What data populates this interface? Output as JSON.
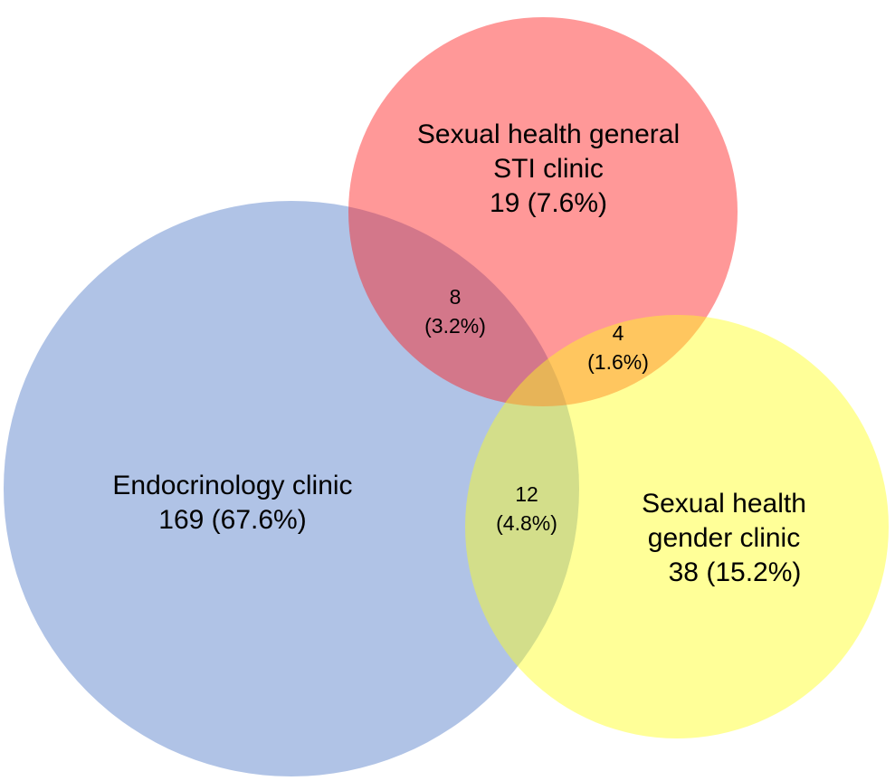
{
  "sets": [
    {
      "name": [
        "Endocrinology clinic"
      ],
      "count": "169 (67.6%)",
      "color": "#4f7ac8"
    },
    {
      "name": [
        "Sexual health general",
        "STI clinic"
      ],
      "count": "19 (7.6%)",
      "color": "#ff1a1a"
    },
    {
      "name": [
        "Sexual health",
        "gender clinic"
      ],
      "count": "38 (15.2%)",
      "color": "#ffff1a"
    }
  ],
  "regions": [
    {
      "count": "8",
      "percent": "(3.2%)"
    },
    {
      "count": "4",
      "percent": "(1.6%)"
    },
    {
      "count": "12",
      "percent": "(4.8%)"
    }
  ]
}
